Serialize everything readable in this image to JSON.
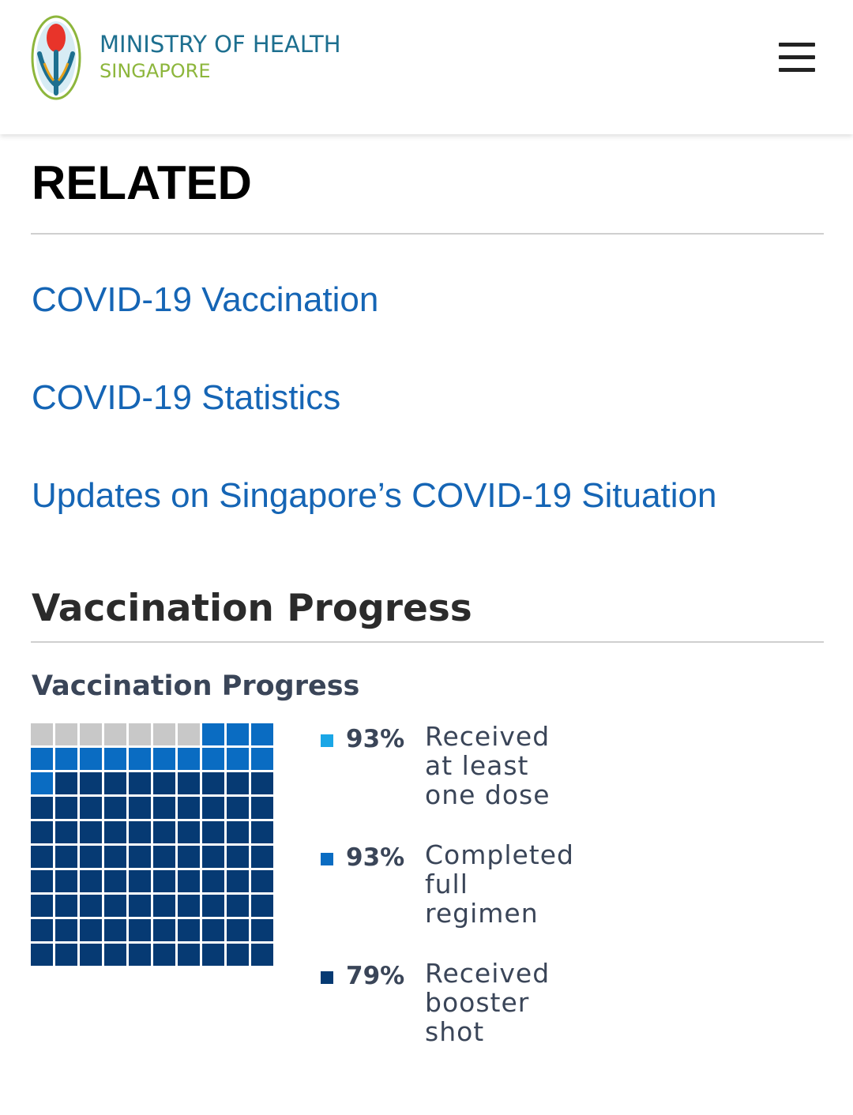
{
  "header": {
    "logo_line1": "MINISTRY OF HEALTH",
    "logo_line2": "SINGAPORE",
    "logo_icon": "moh-emblem-icon",
    "menu_icon": "hamburger-menu-icon",
    "colors": {
      "logo_line1": "#1d6f8f",
      "logo_line2": "#8db63c"
    }
  },
  "related": {
    "heading": "RELATED",
    "links": [
      {
        "label": "COVID-19 Vaccination"
      },
      {
        "label": "COVID-19 Statistics"
      },
      {
        "label": "Updates on Singapore’s COVID-19 Situation"
      }
    ],
    "link_color": "#1565b5"
  },
  "vaccination": {
    "heading": "Vaccination Progress",
    "chart_title": "Vaccination Progress"
  },
  "chart_data": {
    "type": "waffle",
    "title": "Vaccination Progress",
    "total_cells": 100,
    "empty_color": "#c8c8c8",
    "series": [
      {
        "name": "Received at least one dose",
        "percent": "93%",
        "value": 93,
        "color": "#1aa6e6"
      },
      {
        "name": "Completed full regimen",
        "percent": "93%",
        "value": 93,
        "color": "#0a6cc2"
      },
      {
        "name": "Received booster shot",
        "percent": "79%",
        "value": 79,
        "color": "#063a73"
      }
    ]
  }
}
